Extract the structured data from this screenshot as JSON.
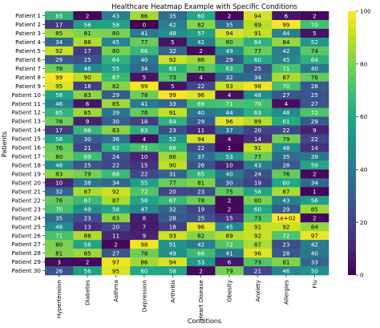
{
  "chart_data": {
    "type": "heatmap",
    "title": "Healthcare Heatmap Example with Specific Conditions",
    "xlabel": "Conditions",
    "ylabel": "Patients",
    "colormap": "viridis",
    "color_range": [
      0,
      100
    ],
    "colorbar_ticks": [
      0,
      20,
      40,
      60,
      80,
      100
    ],
    "columns": [
      "Hypertension",
      "Diabetes",
      "Asthma",
      "Depression",
      "Arthritis",
      "Heart Disease",
      "Obesity",
      "Anxiety",
      "Allergies",
      "Flu"
    ],
    "rows": [
      "Patient 1",
      "Patient 2",
      "Patient 3",
      "Patient 4",
      "Patient 5",
      "Patient 6",
      "Patient 7",
      "Patient 8",
      "Patient 9",
      "Patient 10",
      "Patient 11",
      "Patient 12",
      "Patient 13",
      "Patient 14",
      "Patient 15",
      "Patient 16",
      "Patient 17",
      "Patient 18",
      "Patient 19",
      "Patient 20",
      "Patient 21",
      "Patient 22",
      "Patient 23",
      "Patient 24",
      "Patient 25",
      "Patient 26",
      "Patient 27",
      "Patient 28",
      "Patient 29",
      "Patient 30"
    ],
    "values": [
      [
        65,
        2,
        43,
        86,
        35,
        60,
        2,
        94,
        6,
        2
      ],
      [
        17,
        56,
        58,
        0,
        42,
        82,
        35,
        89,
        99,
        70
      ],
      [
        85,
        81,
        80,
        41,
        48,
        57,
        94,
        91,
        44,
        5
      ],
      [
        34,
        88,
        45,
        77,
        5,
        42,
        80,
        64,
        84,
        52
      ],
      [
        92,
        17,
        80,
        66,
        32,
        2,
        49,
        77,
        42,
        74
      ],
      [
        29,
        25,
        64,
        40,
        92,
        86,
        29,
        60,
        45,
        64
      ],
      [
        78,
        46,
        55,
        34,
        63,
        75,
        63,
        25,
        71,
        40
      ],
      [
        99,
        90,
        67,
        5,
        73,
        4,
        32,
        34,
        87,
        76
      ],
      [
        95,
        18,
        82,
        99,
        5,
        22,
        93,
        98,
        70,
        28
      ],
      [
        58,
        83,
        29,
        78,
        99,
        96,
        4,
        48,
        27,
        25
      ],
      [
        46,
        6,
        85,
        41,
        33,
        69,
        71,
        70,
        4,
        27
      ],
      [
        65,
        85,
        39,
        76,
        91,
        40,
        44,
        63,
        48,
        72
      ],
      [
        78,
        9,
        30,
        18,
        64,
        29,
        96,
        89,
        61,
        29
      ],
      [
        17,
        66,
        83,
        63,
        23,
        11,
        37,
        20,
        22,
        9
      ],
      [
        58,
        30,
        36,
        4,
        52,
        94,
        4,
        14,
        79,
        22
      ],
      [
        76,
        21,
        62,
        71,
        66,
        22,
        1,
        91,
        48,
        14
      ],
      [
        80,
        69,
        24,
        10,
        86,
        37,
        53,
        77,
        35,
        39
      ],
      [
        48,
        25,
        22,
        15,
        90,
        26,
        10,
        43,
        28,
        59
      ],
      [
        83,
        79,
        68,
        22,
        31,
        65,
        40,
        24,
        76,
        2
      ],
      [
        10,
        38,
        34,
        55,
        77,
        81,
        30,
        19,
        60,
        34
      ],
      [
        32,
        87,
        92,
        72,
        20,
        23,
        75,
        58,
        87,
        1
      ],
      [
        76,
        67,
        87,
        58,
        67,
        78,
        2,
        80,
        43,
        56
      ],
      [
        70,
        49,
        58,
        47,
        32,
        19,
        2,
        60,
        29,
        85
      ],
      [
        35,
        23,
        83,
        8,
        28,
        25,
        15,
        73,
        "1e+02",
        2
      ],
      [
        48,
        13,
        20,
        7,
        18,
        96,
        45,
        91,
        92,
        84
      ],
      [
        71,
        88,
        11,
        9,
        93,
        82,
        89,
        92,
        72,
        97
      ],
      [
        80,
        58,
        2,
        98,
        51,
        42,
        72,
        87,
        23,
        42
      ],
      [
        81,
        85,
        27,
        78,
        49,
        68,
        41,
        96,
        28,
        40
      ],
      [
        3,
        2,
        97,
        86,
        94,
        53,
        6,
        73,
        81,
        33
      ],
      [
        26,
        56,
        95,
        60,
        58,
        2,
        79,
        21,
        46,
        50
      ]
    ]
  }
}
